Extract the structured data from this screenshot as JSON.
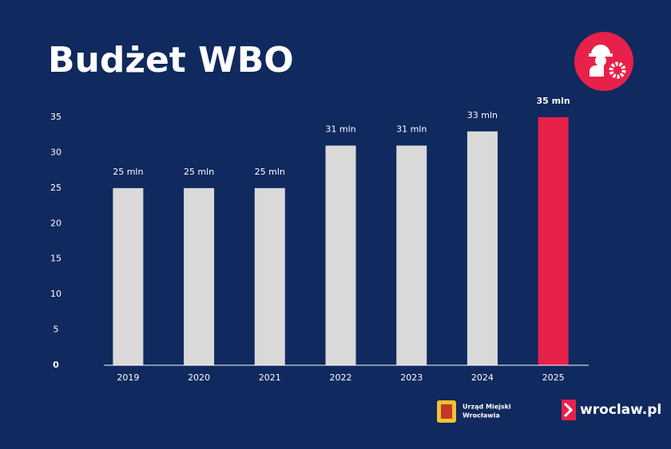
{
  "chart_data": {
    "type": "bar",
    "title": "Budżet WBO",
    "categories": [
      "2019",
      "2020",
      "2021",
      "2022",
      "2023",
      "2024",
      "2025"
    ],
    "values": [
      25,
      25,
      25,
      31,
      31,
      33,
      35
    ],
    "value_labels": [
      "25 mln",
      "25 mln",
      "25 mln",
      "31 mln",
      "31 mln",
      "33 mln",
      "35 mln"
    ],
    "colors": [
      "#d9d9d9",
      "#d9d9d9",
      "#d9d9d9",
      "#d9d9d9",
      "#d9d9d9",
      "#d9d9d9",
      "#e8214a"
    ],
    "ylim": [
      0,
      35
    ],
    "yticks": [
      0,
      5,
      10,
      15,
      20,
      25,
      30,
      35
    ],
    "grid": false
  },
  "footer": {
    "office_line1": "Urząd Miejski",
    "office_line2": "Wrocławia",
    "site": "wroclaw.pl"
  }
}
